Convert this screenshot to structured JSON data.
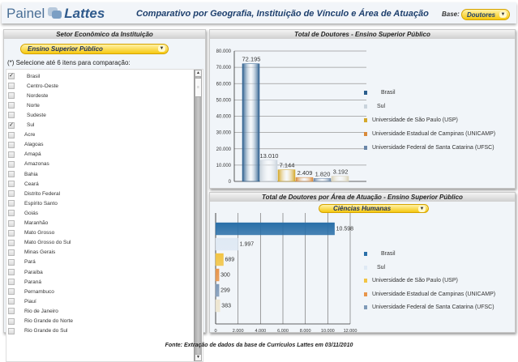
{
  "header": {
    "logo_left": "Painel",
    "logo_right": "Lattes",
    "title": "Comparativo por Geografia, Instituição de Vínculo e Área de Atuação",
    "base_label": "Base:",
    "base_value": "Doutores"
  },
  "left_panel": {
    "title": "Setor Econômico da Instituição",
    "sector_value": "Ensino Superior Público",
    "hint": "(*) Selecione até 6 itens para comparação:",
    "items": [
      {
        "label": "Brasil",
        "checked": true,
        "indent": true
      },
      {
        "label": "Centro-Oeste",
        "checked": false,
        "indent": true
      },
      {
        "label": "Nordeste",
        "checked": false,
        "indent": true
      },
      {
        "label": "Norte",
        "checked": false,
        "indent": true
      },
      {
        "label": "Sudeste",
        "checked": false,
        "indent": true
      },
      {
        "label": "Sul",
        "checked": true,
        "indent": true
      },
      {
        "label": "Acre",
        "checked": false
      },
      {
        "label": "Alagoas",
        "checked": false
      },
      {
        "label": "Amapá",
        "checked": false
      },
      {
        "label": "Amazonas",
        "checked": false
      },
      {
        "label": "Bahia",
        "checked": false
      },
      {
        "label": "Ceará",
        "checked": false
      },
      {
        "label": "Distrito Federal",
        "checked": false
      },
      {
        "label": "Espírito Santo",
        "checked": false
      },
      {
        "label": "Goiás",
        "checked": false
      },
      {
        "label": "Maranhão",
        "checked": false
      },
      {
        "label": "Mato Grosso",
        "checked": false
      },
      {
        "label": "Mato Grosso do Sul",
        "checked": false
      },
      {
        "label": "Minas Gerais",
        "checked": false
      },
      {
        "label": "Pará",
        "checked": false
      },
      {
        "label": "Paraíba",
        "checked": false
      },
      {
        "label": "Paraná",
        "checked": false
      },
      {
        "label": "Pernambuco",
        "checked": false
      },
      {
        "label": "Piauí",
        "checked": false
      },
      {
        "label": "Rio de Janeiro",
        "checked": false
      },
      {
        "label": "Rio Grande do Norte",
        "checked": false
      },
      {
        "label": "Rio Grande do Sul",
        "checked": false
      }
    ]
  },
  "chart_data": [
    {
      "type": "bar",
      "title": "Total de Doutores - Ensino Superior Público",
      "orientation": "vertical",
      "categories": [
        "Brasil",
        "Sul",
        "Universidade de São Paulo (USP)",
        "Universidade Estadual de Campinas (UNICAMP)",
        "Universidade Federal de Santa Catarina (UFSC)",
        ""
      ],
      "values": [
        72195,
        13010,
        7144,
        2409,
        1820,
        3192
      ],
      "value_labels": [
        "72.195",
        "13.010",
        "7.144",
        "2.409",
        "1.820",
        "3.192"
      ],
      "colors": [
        "#2a5d8c",
        "#c9d3dc",
        "#d4a82a",
        "#d98a3a",
        "#6a86a8",
        "#d9d2b8"
      ],
      "yticks": [
        "0",
        "10.000",
        "20.000",
        "30.000",
        "40.000",
        "50.000",
        "60.000",
        "70.000",
        "80.000"
      ],
      "ylim": [
        0,
        80000
      ],
      "grid": true,
      "legend": [
        "Brasil",
        "Sul",
        "Universidade de São Paulo (USP)",
        "Universidade Estadual de Campinas (UNICAMP)",
        "Universidade Federal de Santa Catarina (UFSC)"
      ],
      "legend_position": "right"
    },
    {
      "type": "bar",
      "title": "Total de Doutores por Área de Atuação - Ensino Superior Público",
      "orientation": "horizontal",
      "area_value": "Ciências Humanas",
      "categories": [
        "Brasil",
        "Sul",
        "Universidade de São Paulo (USP)",
        "Universidade Estadual de Campinas (UNICAMP)",
        "Universidade Federal de Santa Catarina (UFSC)",
        ""
      ],
      "values": [
        10598,
        1997,
        689,
        300,
        299,
        383
      ],
      "value_labels": [
        "10.598",
        "1.997",
        "689",
        "300",
        "299",
        "383"
      ],
      "colors": [
        "#2a6fa8",
        "#dfe9f4",
        "#f2c443",
        "#e8954a",
        "#7f9ab8",
        "#eee6d0"
      ],
      "xticks": [
        "0",
        "2.000",
        "4.000",
        "6.000",
        "8.000",
        "10.000",
        "12.000"
      ],
      "xlim": [
        0,
        12000
      ],
      "grid": true,
      "legend": [
        "Brasil",
        "Sul",
        "Universidade de São Paulo (USP)",
        "Universidade Estadual de Campinas (UNICAMP)",
        "Universidade Federal de Santa Catarina (UFSC)"
      ],
      "legend_position": "right"
    }
  ],
  "footer": "Fonte: Extração de dados da base de Currículos Lattes em 03/11/2010"
}
